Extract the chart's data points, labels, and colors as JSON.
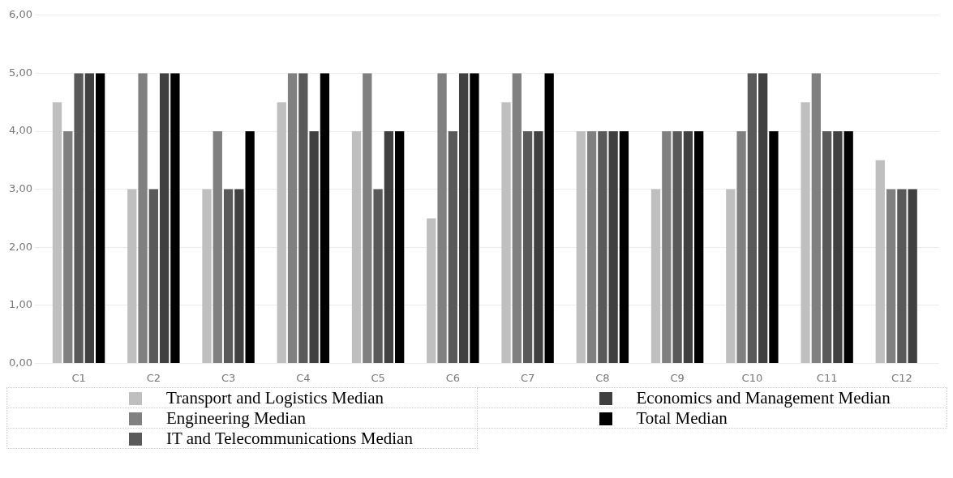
{
  "chart_data": {
    "type": "bar",
    "categories": [
      "C1",
      "C2",
      "C3",
      "C4",
      "C5",
      "C6",
      "C7",
      "C8",
      "C9",
      "C10",
      "C11",
      "C12"
    ],
    "series": [
      {
        "name": "Transport and Logistics Median",
        "color": "#bfbfbf",
        "values": [
          4.5,
          3,
          3,
          4.5,
          4,
          2.5,
          4.5,
          4,
          3,
          3,
          4.5,
          3.5
        ]
      },
      {
        "name": "Engineering Median",
        "color": "#808080",
        "values": [
          4,
          5,
          4,
          5,
          5,
          5,
          5,
          4,
          4,
          4,
          5,
          3
        ]
      },
      {
        "name": "IT and Telecommunications Median",
        "color": "#595959",
        "values": [
          5,
          3,
          3,
          5,
          3,
          4,
          4,
          4,
          4,
          5,
          4,
          3
        ]
      },
      {
        "name": "Economics and Management Median",
        "color": "#404040",
        "values": [
          5,
          5,
          3,
          4,
          4,
          5,
          4,
          4,
          4,
          5,
          4,
          3
        ]
      },
      {
        "name": "Total Median",
        "color": "#000000",
        "values": [
          5,
          5,
          4,
          5,
          4,
          5,
          5,
          4,
          4,
          4,
          4,
          null
        ]
      }
    ],
    "ylim": [
      0,
      6
    ],
    "yticks": [
      {
        "value": 0,
        "label": "0,00"
      },
      {
        "value": 1,
        "label": "1,00"
      },
      {
        "value": 2,
        "label": "2,00"
      },
      {
        "value": 3,
        "label": "3,00"
      },
      {
        "value": 4,
        "label": "4,00"
      },
      {
        "value": 5,
        "label": "5,00"
      },
      {
        "value": 6,
        "label": "6,00"
      }
    ],
    "grid": "y",
    "legend": "bottom"
  }
}
